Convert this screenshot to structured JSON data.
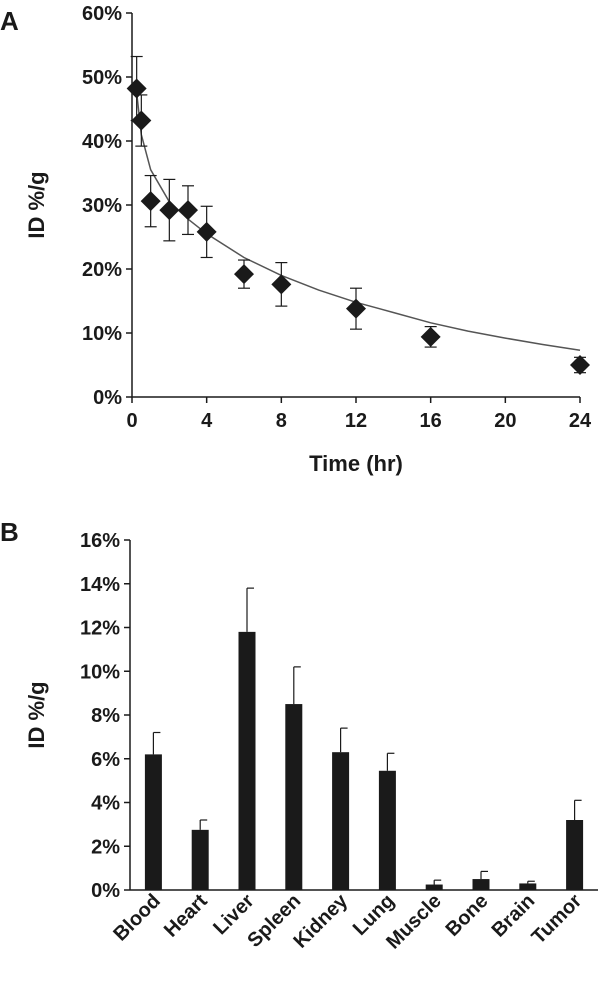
{
  "chart_data": [
    {
      "type": "scatter",
      "panel": "A",
      "title": "",
      "xlabel": "Time (hr)",
      "ylabel": "ID %/g",
      "xlim": [
        0,
        24
      ],
      "ylim": [
        0,
        60
      ],
      "x_ticks": [
        0,
        4,
        8,
        12,
        16,
        20,
        24
      ],
      "y_ticks": [
        "0%",
        "10%",
        "20%",
        "30%",
        "40%",
        "50%",
        "60%"
      ],
      "y_tick_values": [
        0,
        10,
        20,
        30,
        40,
        50,
        60
      ],
      "marker": "diamond",
      "points": [
        {
          "x": 0.25,
          "y": 48.2,
          "err": 5.0
        },
        {
          "x": 0.5,
          "y": 43.2,
          "err": 4.0
        },
        {
          "x": 1,
          "y": 30.6,
          "err": 4.0
        },
        {
          "x": 2,
          "y": 29.2,
          "err": 4.8
        },
        {
          "x": 3,
          "y": 29.2,
          "err": 3.8
        },
        {
          "x": 4,
          "y": 25.8,
          "err": 4.0
        },
        {
          "x": 6,
          "y": 19.2,
          "err": 2.2
        },
        {
          "x": 8,
          "y": 17.6,
          "err": 3.4
        },
        {
          "x": 12,
          "y": 13.8,
          "err": 3.2
        },
        {
          "x": 16,
          "y": 9.4,
          "err": 1.6
        },
        {
          "x": 24,
          "y": 5.0,
          "err": 1.2
        }
      ],
      "fit_curve": {
        "x": [
          0.25,
          0.5,
          1,
          2,
          3,
          4,
          6,
          8,
          10,
          12,
          14,
          16,
          18,
          20,
          22,
          24
        ],
        "y": [
          47.5,
          41.0,
          35.5,
          30.5,
          27.8,
          25.5,
          21.8,
          19.0,
          16.7,
          14.8,
          13.2,
          11.6,
          10.3,
          9.2,
          8.2,
          7.3
        ]
      }
    },
    {
      "type": "bar",
      "panel": "B",
      "title": "",
      "xlabel": "",
      "ylabel": "ID %/g",
      "ylim": [
        0,
        16
      ],
      "y_ticks": [
        "0%",
        "2%",
        "4%",
        "6%",
        "8%",
        "10%",
        "12%",
        "14%",
        "16%"
      ],
      "y_tick_values": [
        0,
        2,
        4,
        6,
        8,
        10,
        12,
        14,
        16
      ],
      "categories": [
        "Blood",
        "Heart",
        "Liver",
        "Spleen",
        "Kidney",
        "Lung",
        "Muscle",
        "Bone",
        "Brain",
        "Tumor"
      ],
      "values": [
        6.2,
        2.75,
        11.8,
        8.5,
        6.3,
        5.45,
        0.25,
        0.5,
        0.3,
        3.2
      ],
      "errors": [
        1.0,
        0.45,
        2.0,
        1.7,
        1.1,
        0.8,
        0.2,
        0.35,
        0.1,
        0.9
      ]
    }
  ],
  "colors": {
    "ink": "#1a1a1a",
    "curve": "#555555"
  }
}
